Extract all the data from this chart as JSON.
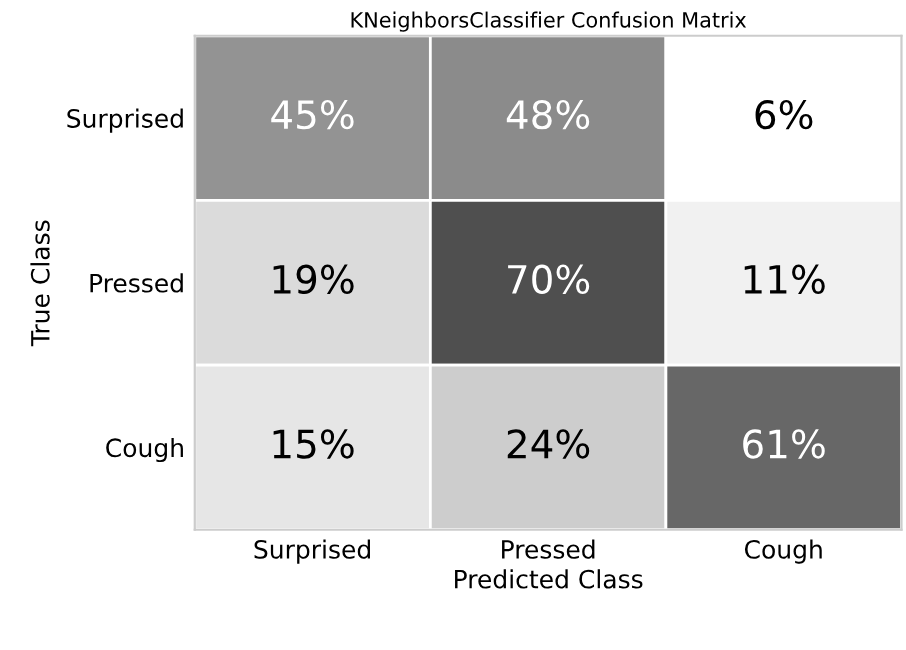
{
  "chart_data": {
    "type": "heatmap",
    "title": "KNeighborsClassifier Confusion Matrix",
    "xlabel": "Predicted Class",
    "ylabel": "True Class",
    "categories": [
      "Surprised",
      "Pressed",
      "Cough"
    ],
    "y_categories": [
      "Surprised",
      "Pressed",
      "Cough"
    ],
    "cells": [
      [
        45,
        48,
        6
      ],
      [
        19,
        70,
        11
      ],
      [
        15,
        24,
        61
      ]
    ],
    "cell_labels": [
      [
        "45%",
        "48%",
        "6%"
      ],
      [
        "19%",
        "70%",
        "11%"
      ],
      [
        "15%",
        "24%",
        "61%"
      ]
    ]
  }
}
